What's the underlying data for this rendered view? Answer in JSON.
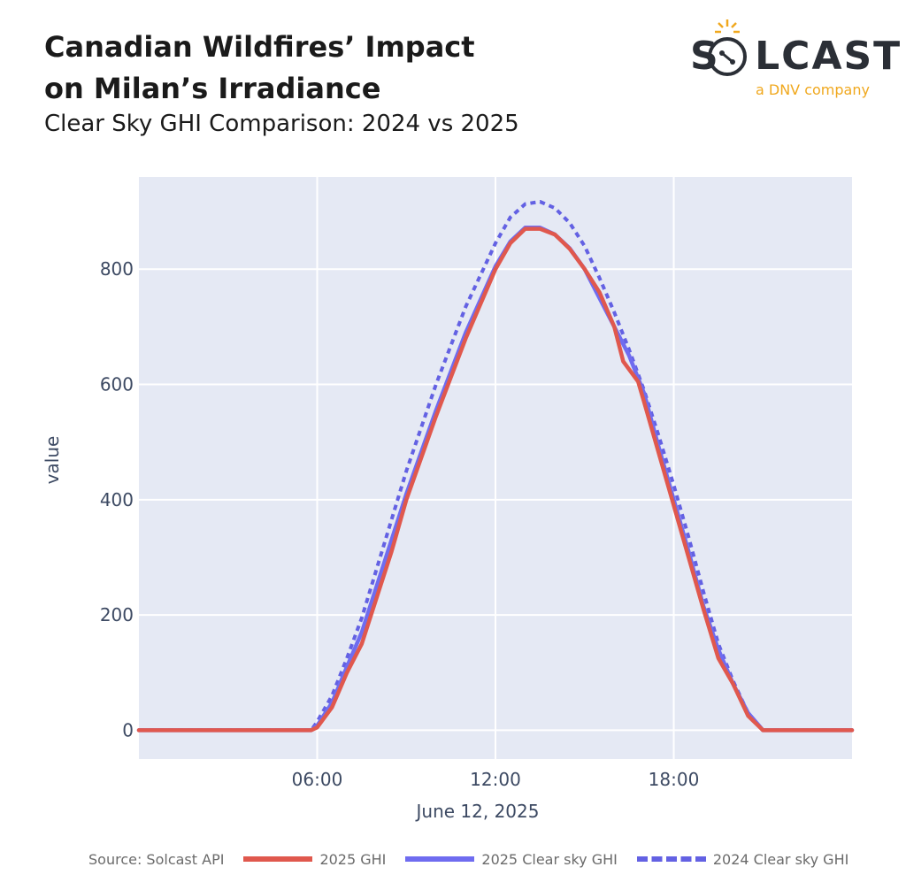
{
  "header": {
    "title": "Canadian Wildfires’ Impact\non Milan’s Irradiance",
    "subtitle": "Clear Sky GHI Comparison: 2024 vs 2025"
  },
  "logo": {
    "brand": "SOLCAST",
    "tagline": "a DNV company",
    "colors": {
      "text": "#2b2f36",
      "accent": "#f0a81e"
    },
    "icon": "sun-circuit-icon"
  },
  "source_note": "Source: Solcast API",
  "chart_data": {
    "type": "line",
    "xlabel": "June 12, 2025",
    "ylabel": "value",
    "xlim": [
      0,
      24
    ],
    "ylim": [
      -50,
      960
    ],
    "x_ticks": [
      {
        "value": 6,
        "label": "06:00"
      },
      {
        "value": 12,
        "label": "12:00"
      },
      {
        "value": 18,
        "label": "18:00"
      }
    ],
    "y_ticks": [
      {
        "value": 0,
        "label": "0"
      },
      {
        "value": 200,
        "label": "200"
      },
      {
        "value": 400,
        "label": "400"
      },
      {
        "value": 600,
        "label": "600"
      },
      {
        "value": 800,
        "label": "800"
      }
    ],
    "grid": true,
    "legend_position": "bottom",
    "colors": {
      "plot_bg": "#e5e9f4",
      "grid": "#ffffff"
    },
    "series": [
      {
        "name": "2025 GHI",
        "style": "solid",
        "color": "#e0584d",
        "points": [
          [
            0,
            0
          ],
          [
            5.8,
            0
          ],
          [
            6.0,
            5
          ],
          [
            6.5,
            40
          ],
          [
            7.0,
            100
          ],
          [
            7.5,
            150
          ],
          [
            8.0,
            230
          ],
          [
            8.5,
            310
          ],
          [
            9.0,
            400
          ],
          [
            10.0,
            545
          ],
          [
            11.0,
            680
          ],
          [
            12.0,
            800
          ],
          [
            12.5,
            845
          ],
          [
            13.0,
            870
          ],
          [
            13.5,
            870
          ],
          [
            14.0,
            860
          ],
          [
            14.5,
            835
          ],
          [
            15.0,
            800
          ],
          [
            15.5,
            760
          ],
          [
            16.0,
            700
          ],
          [
            16.3,
            640
          ],
          [
            16.8,
            605
          ],
          [
            17.0,
            570
          ],
          [
            17.5,
            480
          ],
          [
            18.0,
            390
          ],
          [
            18.5,
            300
          ],
          [
            19.0,
            210
          ],
          [
            19.5,
            125
          ],
          [
            20.0,
            80
          ],
          [
            20.5,
            25
          ],
          [
            21.0,
            0
          ],
          [
            24,
            0
          ]
        ]
      },
      {
        "name": "2025 Clear sky GHI",
        "style": "solid",
        "color": "#6f6cf0",
        "points": [
          [
            0,
            0
          ],
          [
            5.8,
            0
          ],
          [
            6.0,
            8
          ],
          [
            6.5,
            48
          ],
          [
            7.0,
            110
          ],
          [
            7.5,
            170
          ],
          [
            8.0,
            250
          ],
          [
            8.5,
            330
          ],
          [
            9.0,
            410
          ],
          [
            10.0,
            555
          ],
          [
            11.0,
            690
          ],
          [
            12.0,
            805
          ],
          [
            12.5,
            848
          ],
          [
            13.0,
            872
          ],
          [
            13.5,
            872
          ],
          [
            14.0,
            860
          ],
          [
            14.5,
            836
          ],
          [
            15.0,
            800
          ],
          [
            15.5,
            750
          ],
          [
            16.0,
            700
          ],
          [
            16.5,
            650
          ],
          [
            17.0,
            585
          ],
          [
            17.5,
            490
          ],
          [
            18.0,
            400
          ],
          [
            18.5,
            310
          ],
          [
            19.0,
            215
          ],
          [
            19.5,
            140
          ],
          [
            20.0,
            80
          ],
          [
            20.5,
            30
          ],
          [
            21.0,
            0
          ],
          [
            24,
            0
          ]
        ]
      },
      {
        "name": "2024 Clear sky GHI",
        "style": "dash",
        "color": "#6361e3",
        "points": [
          [
            0,
            0
          ],
          [
            5.8,
            0
          ],
          [
            6.0,
            15
          ],
          [
            6.5,
            60
          ],
          [
            7.0,
            125
          ],
          [
            7.5,
            195
          ],
          [
            8.0,
            280
          ],
          [
            8.5,
            365
          ],
          [
            9.0,
            450
          ],
          [
            10.0,
            600
          ],
          [
            11.0,
            735
          ],
          [
            12.0,
            845
          ],
          [
            12.5,
            890
          ],
          [
            13.0,
            913
          ],
          [
            13.5,
            917
          ],
          [
            14.0,
            906
          ],
          [
            14.5,
            880
          ],
          [
            15.0,
            840
          ],
          [
            15.5,
            785
          ],
          [
            16.0,
            725
          ],
          [
            16.5,
            660
          ],
          [
            17.0,
            590
          ],
          [
            17.5,
            510
          ],
          [
            18.0,
            425
          ],
          [
            18.5,
            335
          ],
          [
            19.0,
            240
          ],
          [
            19.5,
            150
          ],
          [
            20.0,
            85
          ],
          [
            20.5,
            30
          ],
          [
            21.0,
            0
          ],
          [
            24,
            0
          ]
        ]
      }
    ]
  }
}
